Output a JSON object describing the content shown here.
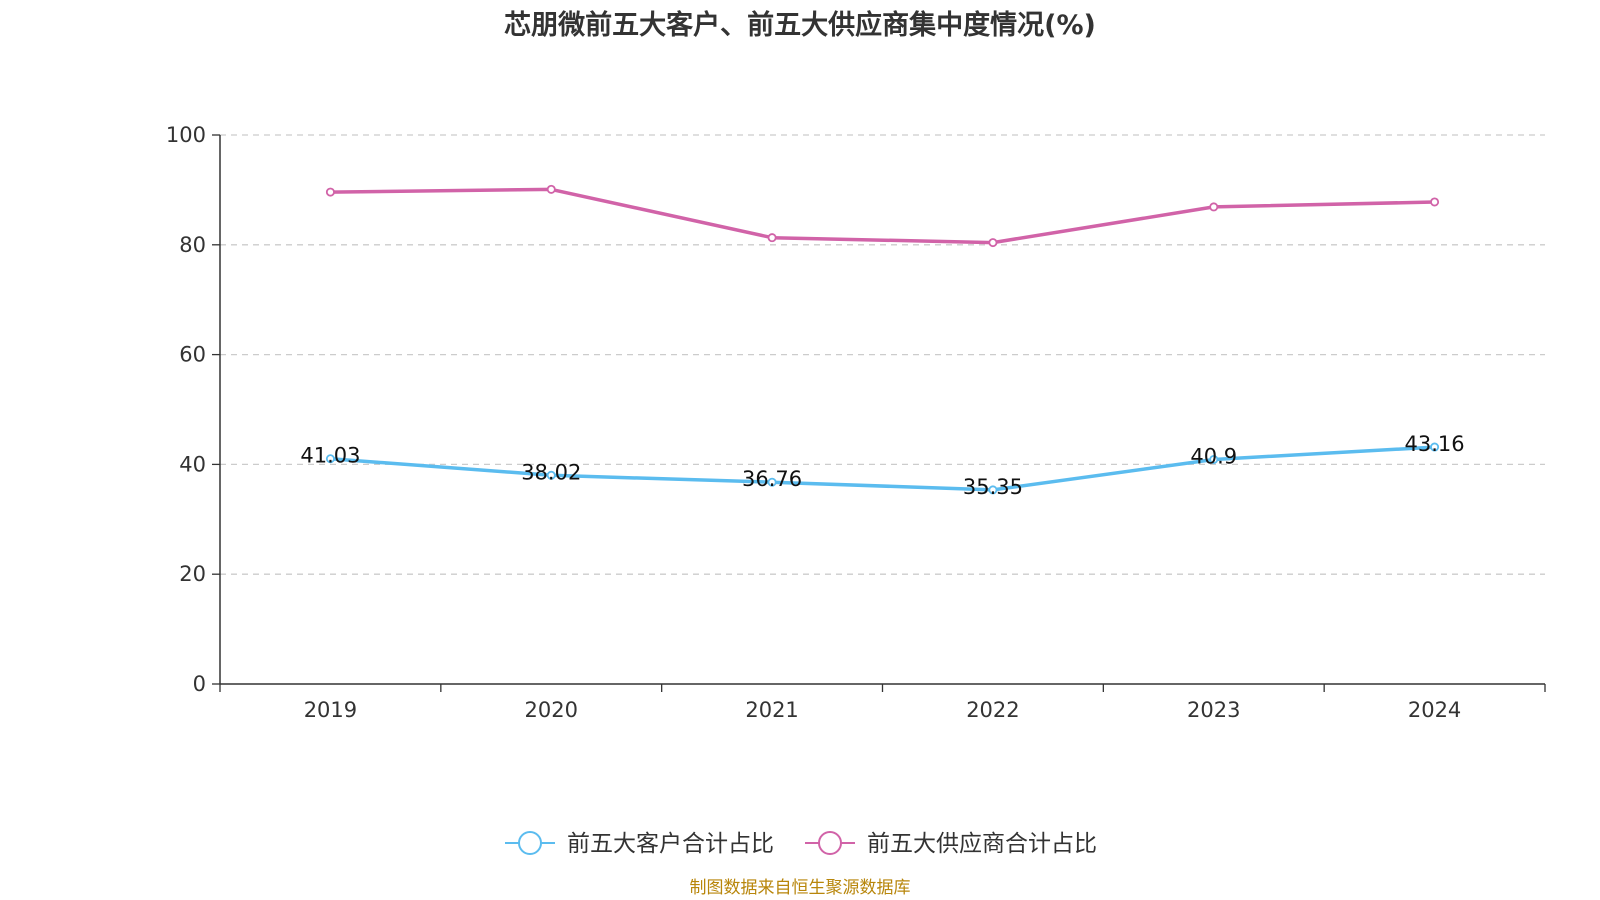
{
  "chart_data": {
    "type": "line",
    "title": "芯朋微前五大客户、前五大供应商集中度情况(%)",
    "categories": [
      "2019",
      "2020",
      "2021",
      "2022",
      "2023",
      "2024"
    ],
    "ylim": [
      0,
      100
    ],
    "yticks": [
      0,
      20,
      40,
      60,
      80,
      100
    ],
    "grid": true,
    "legend_position": "bottom",
    "series": [
      {
        "name": "前五大客户合计占比",
        "color": "#5bbcef",
        "values": [
          41.03,
          38.02,
          36.76,
          35.35,
          40.9,
          43.16
        ],
        "data_labels": [
          "41.03",
          "38.02",
          "36.76",
          "35.35",
          "40.9",
          "43.16"
        ]
      },
      {
        "name": "前五大供应商合计占比",
        "color": "#d163a8",
        "values": [
          89.6,
          90.1,
          81.3,
          80.4,
          86.9,
          87.8
        ]
      }
    ]
  },
  "source": {
    "text": "制图数据来自恒生聚源数据库",
    "color": "#b8860b"
  }
}
